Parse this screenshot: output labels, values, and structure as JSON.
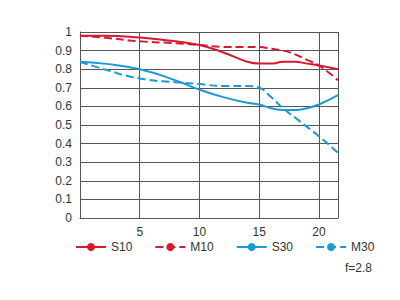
{
  "chart_data": {
    "type": "line",
    "annotation": "f=2.8",
    "xlim": [
      0,
      21.6
    ],
    "xticks": [
      5,
      10,
      15,
      20
    ],
    "ylim": [
      0,
      1
    ],
    "yticks": [
      0,
      0.1,
      0.2,
      0.3,
      0.4,
      0.5,
      0.6,
      0.7,
      0.8,
      0.9,
      1
    ],
    "grid": true,
    "legend": "bottom",
    "x": [
      0,
      2,
      5,
      8,
      10,
      12,
      14,
      15,
      16,
      17,
      18,
      19,
      20,
      21.6
    ],
    "series": [
      {
        "name": "S10",
        "color": "#d7192f",
        "line_style": "solid",
        "values": [
          0.98,
          0.98,
          0.97,
          0.95,
          0.93,
          0.89,
          0.84,
          0.83,
          0.83,
          0.84,
          0.84,
          0.83,
          0.82,
          0.8
        ]
      },
      {
        "name": "M10",
        "color": "#d7192f",
        "line_style": "dashed",
        "values": [
          0.98,
          0.97,
          0.95,
          0.94,
          0.93,
          0.92,
          0.92,
          0.92,
          0.91,
          0.9,
          0.88,
          0.85,
          0.82,
          0.74
        ]
      },
      {
        "name": "S30",
        "color": "#1a9ad6",
        "line_style": "solid",
        "values": [
          0.84,
          0.83,
          0.8,
          0.74,
          0.69,
          0.65,
          0.62,
          0.61,
          0.59,
          0.58,
          0.58,
          0.59,
          0.61,
          0.66
        ]
      },
      {
        "name": "M30",
        "color": "#1a9ad6",
        "line_style": "dashed",
        "values": [
          0.84,
          0.8,
          0.75,
          0.73,
          0.72,
          0.71,
          0.71,
          0.7,
          0.65,
          0.59,
          0.54,
          0.49,
          0.44,
          0.35
        ]
      }
    ]
  }
}
